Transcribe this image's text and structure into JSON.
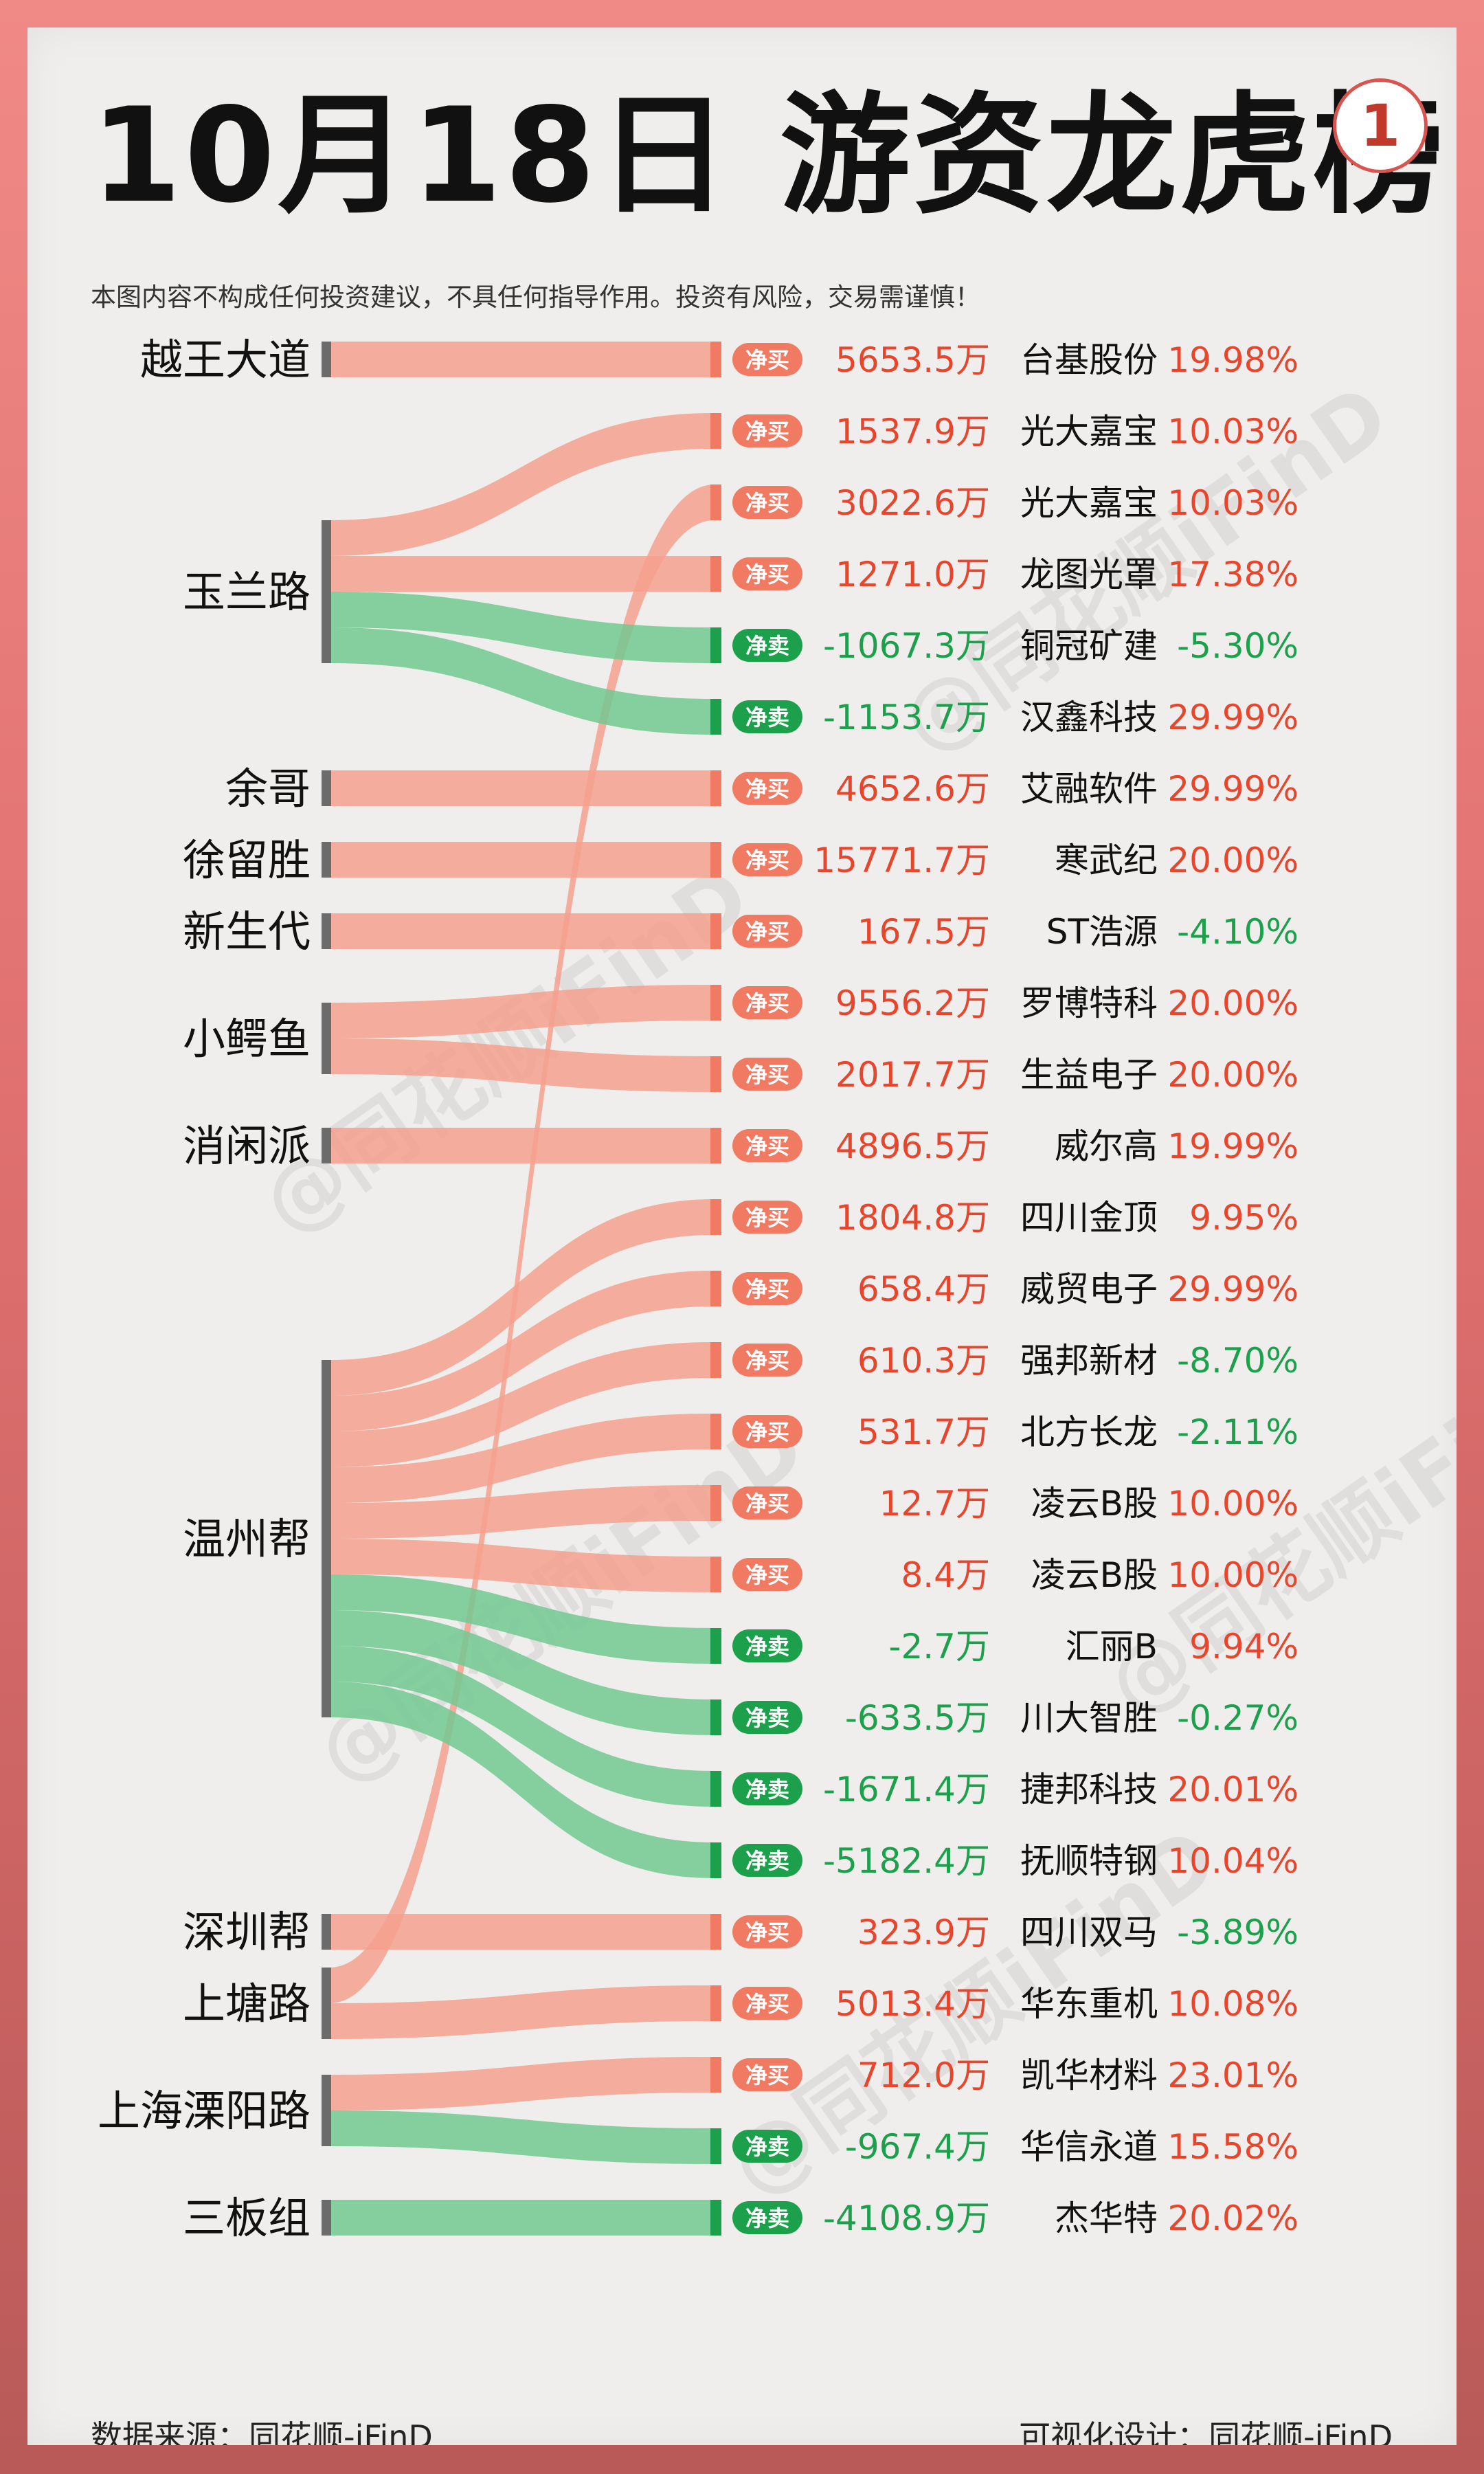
{
  "title": "10月18日 游资龙虎榜",
  "badge": "1",
  "disclaimer": "本图内容不构成任何投资建议，不具任何指导作用。投资有风险，交易需谨慎！",
  "footer": {
    "source": "数据来源：同花顺-iFinD",
    "design": "可视化设计：同花顺-iFinD"
  },
  "watermark": "@同花顺iFinD",
  "colors": {
    "buy": "#f07a62",
    "buy_flow": "#f4a08e",
    "sell": "#1ca04c",
    "sell_flow": "#72c992",
    "pct_up": "#e8462c",
    "pct_down": "#1ca04c",
    "source_bar": "#6b6b6b"
  },
  "chart_data": {
    "type": "sankey",
    "labels": {
      "buy": "净买",
      "sell": "净卖",
      "unit": "万"
    },
    "sources": [
      "越王大道",
      "玉兰路",
      "余哥",
      "徐留胜",
      "新生代",
      "小鳄鱼",
      "消闲派",
      "温州帮",
      "深圳帮",
      "上塘路",
      "上海溧阳路",
      "三板组"
    ],
    "rows": [
      {
        "source": "越王大道",
        "amount": 5653.5,
        "amount_text": "5653.5万",
        "stock": "台基股份",
        "pct": "19.98%",
        "type": "buy"
      },
      {
        "source": "玉兰路",
        "amount": 1537.9,
        "amount_text": "1537.9万",
        "stock": "光大嘉宝",
        "pct": "10.03%",
        "type": "buy"
      },
      {
        "source": "上塘路",
        "amount": 3022.6,
        "amount_text": "3022.6万",
        "stock": "光大嘉宝",
        "pct": "10.03%",
        "type": "buy"
      },
      {
        "source": "玉兰路",
        "amount": 1271.0,
        "amount_text": "1271.0万",
        "stock": "龙图光罩",
        "pct": "17.38%",
        "type": "buy"
      },
      {
        "source": "玉兰路",
        "amount": -1067.3,
        "amount_text": "-1067.3万",
        "stock": "铜冠矿建",
        "pct": "-5.30%",
        "type": "sell"
      },
      {
        "source": "玉兰路",
        "amount": -1153.7,
        "amount_text": "-1153.7万",
        "stock": "汉鑫科技",
        "pct": "29.99%",
        "type": "sell"
      },
      {
        "source": "余哥",
        "amount": 4652.6,
        "amount_text": "4652.6万",
        "stock": "艾融软件",
        "pct": "29.99%",
        "type": "buy"
      },
      {
        "source": "徐留胜",
        "amount": 15771.7,
        "amount_text": "15771.7万",
        "stock": "寒武纪",
        "pct": "20.00%",
        "type": "buy"
      },
      {
        "source": "新生代",
        "amount": 167.5,
        "amount_text": "167.5万",
        "stock": "ST浩源",
        "pct": "-4.10%",
        "type": "buy"
      },
      {
        "source": "小鳄鱼",
        "amount": 9556.2,
        "amount_text": "9556.2万",
        "stock": "罗博特科",
        "pct": "20.00%",
        "type": "buy"
      },
      {
        "source": "小鳄鱼",
        "amount": 2017.7,
        "amount_text": "2017.7万",
        "stock": "生益电子",
        "pct": "20.00%",
        "type": "buy"
      },
      {
        "source": "消闲派",
        "amount": 4896.5,
        "amount_text": "4896.5万",
        "stock": "威尔高",
        "pct": "19.99%",
        "type": "buy"
      },
      {
        "source": "温州帮",
        "amount": 1804.8,
        "amount_text": "1804.8万",
        "stock": "四川金顶",
        "pct": "9.95%",
        "type": "buy"
      },
      {
        "source": "温州帮",
        "amount": 658.4,
        "amount_text": "658.4万",
        "stock": "威贸电子",
        "pct": "29.99%",
        "type": "buy"
      },
      {
        "source": "温州帮",
        "amount": 610.3,
        "amount_text": "610.3万",
        "stock": "强邦新材",
        "pct": "-8.70%",
        "type": "buy"
      },
      {
        "source": "温州帮",
        "amount": 531.7,
        "amount_text": "531.7万",
        "stock": "北方长龙",
        "pct": "-2.11%",
        "type": "buy"
      },
      {
        "source": "温州帮",
        "amount": 12.7,
        "amount_text": "12.7万",
        "stock": "凌云B股",
        "pct": "10.00%",
        "type": "buy"
      },
      {
        "source": "温州帮",
        "amount": 8.4,
        "amount_text": "8.4万",
        "stock": "凌云B股",
        "pct": "10.00%",
        "type": "buy"
      },
      {
        "source": "温州帮",
        "amount": -2.7,
        "amount_text": "-2.7万",
        "stock": "汇丽B",
        "pct": "9.94%",
        "type": "sell"
      },
      {
        "source": "温州帮",
        "amount": -633.5,
        "amount_text": "-633.5万",
        "stock": "川大智胜",
        "pct": "-0.27%",
        "type": "sell"
      },
      {
        "source": "温州帮",
        "amount": -1671.4,
        "amount_text": "-1671.4万",
        "stock": "捷邦科技",
        "pct": "20.01%",
        "type": "sell"
      },
      {
        "source": "温州帮",
        "amount": -5182.4,
        "amount_text": "-5182.4万",
        "stock": "抚顺特钢",
        "pct": "10.04%",
        "type": "sell"
      },
      {
        "source": "深圳帮",
        "amount": 323.9,
        "amount_text": "323.9万",
        "stock": "四川双马",
        "pct": "-3.89%",
        "type": "buy"
      },
      {
        "source": "上塘路",
        "amount": 5013.4,
        "amount_text": "5013.4万",
        "stock": "华东重机",
        "pct": "10.08%",
        "type": "buy"
      },
      {
        "source": "上海溧阳路",
        "amount": 712.0,
        "amount_text": "712.0万",
        "stock": "凯华材料",
        "pct": "23.01%",
        "type": "buy"
      },
      {
        "source": "上海溧阳路",
        "amount": -967.4,
        "amount_text": "-967.4万",
        "stock": "华信永道",
        "pct": "15.58%",
        "type": "sell"
      },
      {
        "source": "三板组",
        "amount": -4108.9,
        "amount_text": "-4108.9万",
        "stock": "杰华特",
        "pct": "20.02%",
        "type": "sell"
      }
    ]
  }
}
